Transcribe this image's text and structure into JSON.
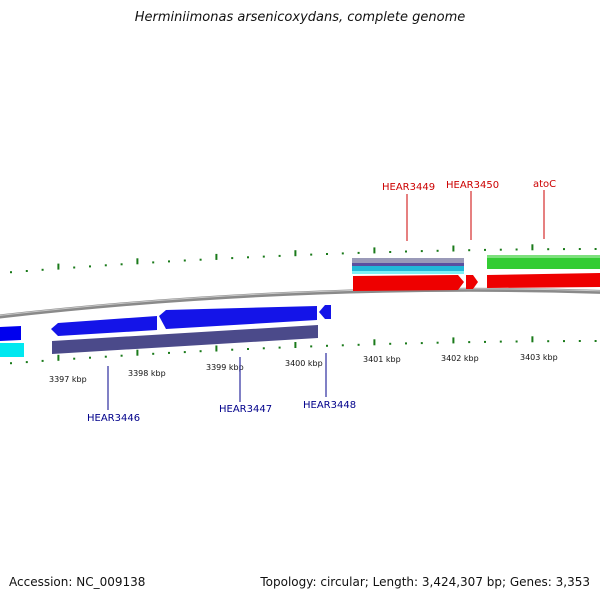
{
  "title": "Herminiimonas arsenicoxydans, complete genome",
  "colors": {
    "background": "#ffffff",
    "backbone": "#808080",
    "tick": "#1a7a1a",
    "forward_label": "#cc0000",
    "reverse_label": "#00008b",
    "gene_blue": "#0000ee",
    "gene_slate": "#4b4a8a",
    "gene_cyan": "#00e5ee",
    "gene_red": "#ee0000",
    "gene_green": "#33cc33",
    "gene_gray": "#9a9ab0"
  },
  "tick_labels": [
    "3397 kbp",
    "3398 kbp",
    "3399 kbp",
    "3400 kbp",
    "3401 kbp",
    "3402 kbp",
    "3403 kbp"
  ],
  "gene_labels": {
    "forward": [
      "HEAR3449",
      "HEAR3450",
      "atoC"
    ],
    "reverse": [
      "HEAR3446",
      "HEAR3447",
      "HEAR3448"
    ]
  },
  "footer": {
    "accession": "Accession: NC_009138",
    "summary": "Topology: circular; Length: 3,424,307 bp; Genes: 3,353"
  }
}
